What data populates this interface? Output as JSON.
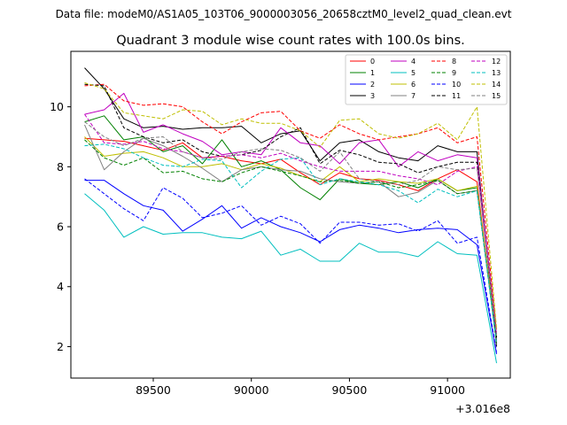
{
  "chart_data": {
    "type": "line",
    "supertitle": "Data file: modeM0/AS1A05_103T06_9000003056_20658cztM0_level2_quad_clean.evt",
    "title": "Quadrant 3 module wise count rates with 100.0s bins.",
    "xlabel": "",
    "ylabel": "",
    "x_offset_label": "+3.016e8",
    "xlim": [
      89080,
      91320
    ],
    "ylim": [
      0.95,
      11.85
    ],
    "x_ticks": [
      89500,
      90000,
      90500,
      91000
    ],
    "x_tick_labels": [
      "89500",
      "90000",
      "90500",
      "91000"
    ],
    "y_ticks": [
      2,
      4,
      6,
      8,
      10
    ],
    "y_tick_labels": [
      "2",
      "4",
      "6",
      "8",
      "10"
    ],
    "legend_position": "top-right",
    "x": [
      89150,
      89250,
      89350,
      89450,
      89550,
      89650,
      89750,
      89850,
      89950,
      90050,
      90150,
      90250,
      90350,
      90450,
      90550,
      90650,
      90750,
      90850,
      90950,
      91050,
      91150,
      91250
    ],
    "series": [
      {
        "name": "0",
        "color": "#ff0000",
        "dash": "solid",
        "values": [
          8.95,
          8.9,
          8.85,
          8.7,
          8.55,
          8.8,
          8.3,
          8.35,
          8.2,
          8.1,
          8.25,
          7.8,
          7.4,
          7.8,
          7.6,
          7.55,
          7.4,
          7.2,
          7.6,
          7.9,
          7.5,
          2.2
        ]
      },
      {
        "name": "1",
        "color": "#008000",
        "dash": "solid",
        "values": [
          9.5,
          9.7,
          8.9,
          9.0,
          8.5,
          8.7,
          8.1,
          8.9,
          8.0,
          8.2,
          7.9,
          7.3,
          6.9,
          7.6,
          7.45,
          7.4,
          7.5,
          7.3,
          7.6,
          7.2,
          7.3,
          2.1
        ]
      },
      {
        "name": "2",
        "color": "#0000ff",
        "dash": "solid",
        "values": [
          7.55,
          7.55,
          7.1,
          6.7,
          6.55,
          5.85,
          6.25,
          6.7,
          5.95,
          6.3,
          6.0,
          5.8,
          5.5,
          5.9,
          6.05,
          5.95,
          5.8,
          5.9,
          5.95,
          5.9,
          5.4,
          1.75
        ]
      },
      {
        "name": "3",
        "color": "#000000",
        "dash": "solid",
        "values": [
          11.3,
          10.6,
          9.6,
          9.3,
          9.35,
          9.25,
          9.3,
          9.3,
          9.35,
          8.8,
          9.1,
          9.2,
          8.2,
          8.8,
          8.9,
          8.5,
          8.3,
          8.2,
          8.7,
          8.5,
          8.5,
          2.0
        ]
      },
      {
        "name": "4",
        "color": "#c000c0",
        "dash": "solid",
        "values": [
          9.75,
          9.9,
          10.45,
          9.15,
          9.4,
          9.1,
          8.85,
          8.4,
          8.5,
          8.4,
          9.3,
          8.8,
          8.7,
          8.1,
          8.8,
          8.9,
          8.0,
          8.5,
          8.2,
          8.4,
          8.3,
          2.4
        ]
      },
      {
        "name": "5",
        "color": "#00bfbf",
        "dash": "solid",
        "values": [
          7.1,
          6.55,
          5.65,
          6.0,
          5.75,
          5.8,
          5.8,
          5.65,
          5.6,
          5.85,
          5.05,
          5.25,
          4.85,
          4.85,
          5.45,
          5.15,
          5.15,
          5.0,
          5.5,
          5.1,
          5.05,
          1.45
        ]
      },
      {
        "name": "6",
        "color": "#bfbf00",
        "dash": "solid",
        "values": [
          9.0,
          8.35,
          8.45,
          8.5,
          8.3,
          8.0,
          8.0,
          8.1,
          7.9,
          8.1,
          7.95,
          7.7,
          7.5,
          8.0,
          7.5,
          7.6,
          7.5,
          7.45,
          7.6,
          7.2,
          7.35,
          2.3
        ]
      },
      {
        "name": "7",
        "color": "#808080",
        "dash": "solid",
        "values": [
          9.4,
          7.9,
          8.5,
          8.95,
          8.7,
          8.35,
          7.95,
          7.5,
          7.9,
          8.0,
          7.9,
          7.85,
          7.6,
          7.5,
          7.45,
          7.5,
          7.0,
          7.15,
          7.55,
          7.1,
          7.2,
          2.2
        ]
      },
      {
        "name": "8",
        "color": "#ff0000",
        "dash": "dashed",
        "values": [
          10.7,
          10.75,
          10.2,
          10.05,
          10.1,
          10.0,
          9.5,
          9.1,
          9.5,
          9.8,
          9.85,
          9.2,
          8.95,
          9.4,
          9.1,
          8.9,
          9.0,
          9.1,
          9.3,
          8.8,
          9.0,
          2.5
        ]
      },
      {
        "name": "9",
        "color": "#008000",
        "dash": "dashed",
        "values": [
          8.9,
          8.3,
          8.05,
          8.3,
          7.8,
          7.85,
          7.6,
          7.5,
          7.8,
          8.0,
          7.85,
          7.7,
          7.5,
          7.55,
          7.45,
          7.5,
          7.3,
          7.4,
          7.55,
          7.1,
          7.2,
          2.1
        ]
      },
      {
        "name": "10",
        "color": "#0000ff",
        "dash": "dashed",
        "values": [
          7.6,
          7.1,
          6.6,
          6.2,
          7.3,
          6.95,
          6.3,
          6.45,
          6.7,
          6.05,
          6.35,
          6.1,
          5.45,
          6.15,
          6.15,
          6.05,
          6.1,
          5.85,
          6.2,
          5.45,
          5.65,
          1.8
        ]
      },
      {
        "name": "11",
        "color": "#000000",
        "dash": "dashed",
        "values": [
          10.75,
          10.7,
          9.3,
          9.0,
          8.8,
          8.9,
          8.5,
          8.35,
          8.4,
          8.55,
          9.0,
          9.3,
          8.1,
          8.55,
          8.4,
          8.15,
          8.1,
          7.8,
          8.0,
          8.15,
          8.15,
          2.3
        ]
      },
      {
        "name": "12",
        "color": "#c000c0",
        "dash": "dashed",
        "values": [
          9.75,
          8.8,
          8.75,
          8.85,
          8.6,
          8.5,
          8.3,
          8.35,
          8.4,
          8.3,
          8.45,
          8.2,
          8.0,
          7.85,
          7.85,
          7.85,
          7.7,
          7.6,
          7.4,
          7.85,
          8.0,
          2.4
        ]
      },
      {
        "name": "13",
        "color": "#00bfbf",
        "dash": "dashed",
        "values": [
          8.7,
          8.75,
          8.6,
          8.3,
          8.05,
          8.0,
          8.25,
          8.2,
          7.3,
          7.85,
          8.25,
          8.3,
          7.4,
          7.6,
          7.5,
          7.4,
          7.2,
          6.8,
          7.25,
          7.0,
          7.2,
          2.1
        ]
      },
      {
        "name": "14",
        "color": "#bfbf00",
        "dash": "dashed",
        "values": [
          10.8,
          10.6,
          9.8,
          9.7,
          9.6,
          9.9,
          9.85,
          9.4,
          9.6,
          9.45,
          9.45,
          9.2,
          8.65,
          9.55,
          9.6,
          9.1,
          8.95,
          9.1,
          9.45,
          8.9,
          10.0,
          2.6
        ]
      },
      {
        "name": "15",
        "color": "#808080",
        "dash": "dashed",
        "values": [
          9.5,
          9.0,
          8.7,
          8.95,
          9.0,
          8.5,
          8.3,
          8.25,
          8.5,
          8.6,
          8.55,
          8.3,
          7.85,
          8.5,
          7.6,
          7.5,
          7.4,
          7.55,
          8.0,
          7.9,
          7.95,
          2.4
        ]
      }
    ]
  }
}
